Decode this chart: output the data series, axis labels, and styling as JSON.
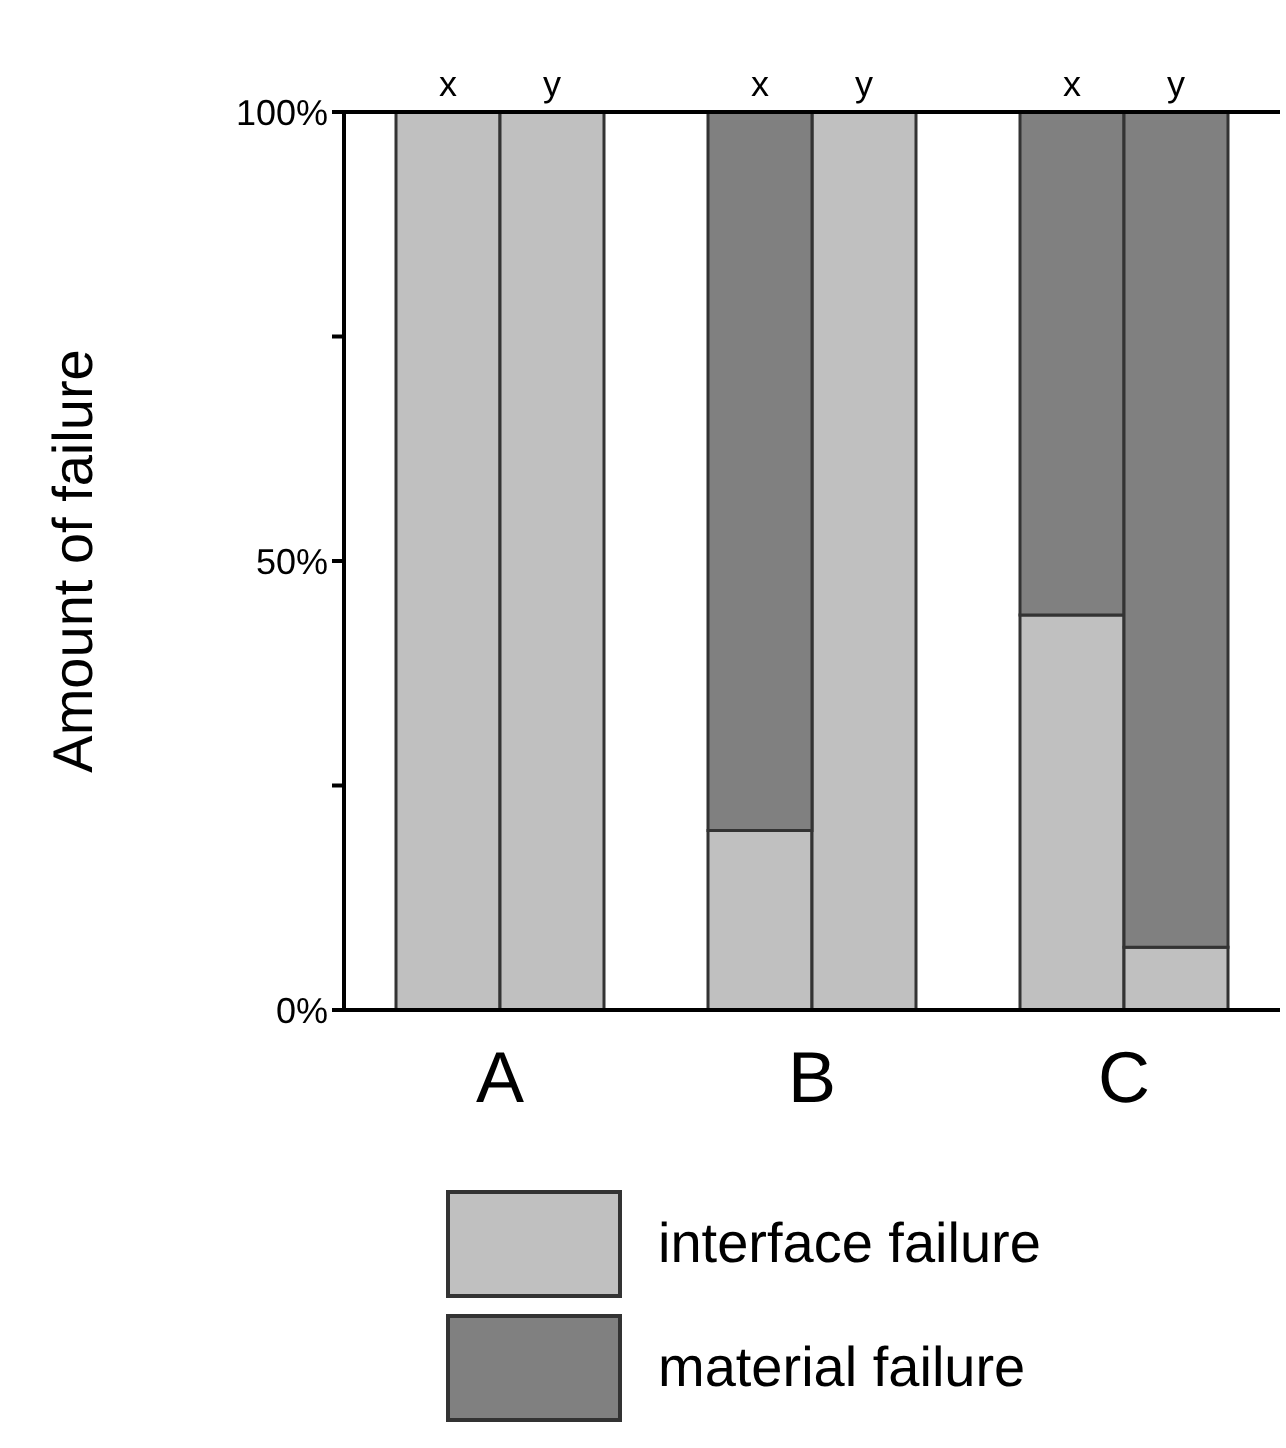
{
  "chart_data": {
    "type": "bar",
    "stacked": true,
    "ylabel": "Amount of failure",
    "categories": [
      "x",
      "y",
      "x",
      "y",
      "x",
      "y"
    ],
    "series": [
      {
        "name": "interface failure",
        "color": "#c0c0c0",
        "values": [
          100,
          100,
          20,
          100,
          44,
          7
        ]
      },
      {
        "name": "material failure",
        "color": "#808080",
        "values": [
          0,
          0,
          80,
          0,
          56,
          93
        ]
      }
    ],
    "annotations": [
      "A",
      "B",
      "C"
    ],
    "ylim": [
      0,
      100
    ],
    "yticks": [
      {
        "value": 0,
        "label": "0%"
      },
      {
        "value": 25,
        "label": null
      },
      {
        "value": 50,
        "label": "50%"
      },
      {
        "value": 75,
        "label": null
      },
      {
        "value": 100,
        "label": "100%"
      }
    ],
    "legend": "bottom"
  }
}
